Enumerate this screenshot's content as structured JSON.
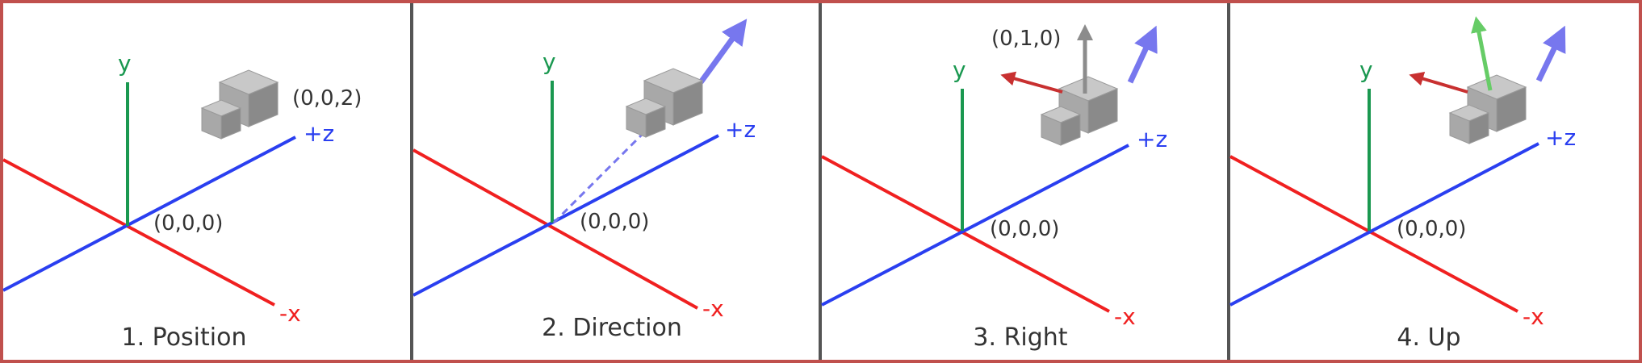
{
  "colors": {
    "frame": "#c0504d",
    "divider": "#555555",
    "x_axis": "#f02020",
    "y_axis": "#1a9850",
    "z_axis": "#2a3ff0",
    "direction_arrow": "#7777ee",
    "right_arrow": "#c83030",
    "up_gray": "#8c8c8c",
    "up_green": "#66cc66",
    "cube_top": "#c8c8c8",
    "cube_left": "#a8a8a8",
    "cube_right": "#8a8a8a"
  },
  "axis_labels": {
    "y": "y",
    "z": "+z",
    "x": "-x"
  },
  "icons": [
    "cube-icon",
    "direction-arrow-icon",
    "right-arrow-icon",
    "up-arrow-icon"
  ],
  "panels": [
    {
      "caption": "1. Position",
      "origin_label": "(0,0,0)",
      "point_label": "(0,0,2)",
      "up_label": ""
    },
    {
      "caption": "2. Direction",
      "origin_label": "(0,0,0)",
      "point_label": "",
      "up_label": ""
    },
    {
      "caption": "3. Right",
      "origin_label": "(0,0,0)",
      "point_label": "",
      "up_label": "(0,1,0)"
    },
    {
      "caption": "4. Up",
      "origin_label": "(0,0,0)",
      "point_label": "",
      "up_label": ""
    }
  ]
}
